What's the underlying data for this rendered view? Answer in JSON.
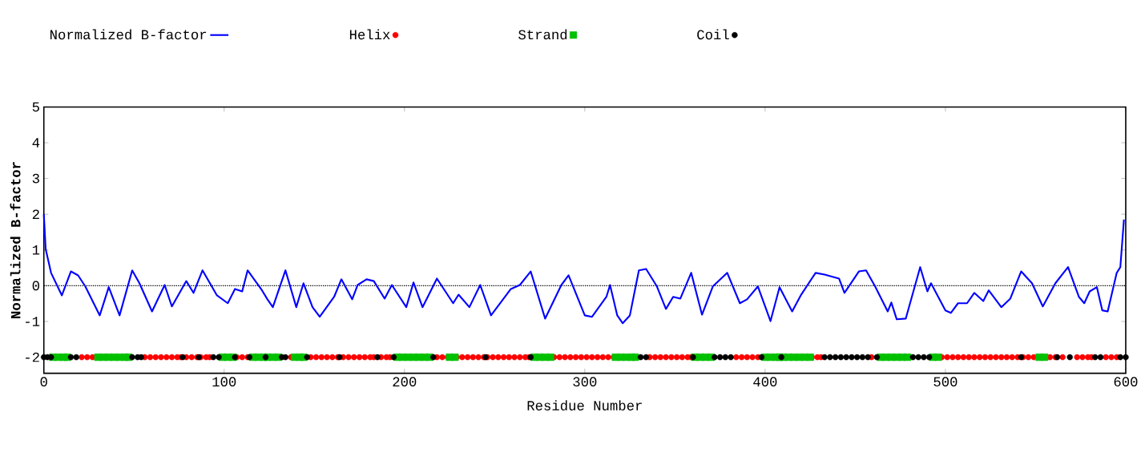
{
  "chart_data": {
    "type": "line",
    "xlabel": "Residue Number",
    "ylabel": "Normalized B-factor",
    "xlim": [
      0,
      600
    ],
    "ylim": [
      -2.45,
      5
    ],
    "xticks": [
      0,
      100,
      200,
      300,
      400,
      500,
      600
    ],
    "yticks": [
      -2,
      -1,
      0,
      1,
      2,
      3,
      4,
      5
    ],
    "legend": "top",
    "ref_lines": [
      {
        "axis": "y",
        "value": 0,
        "color": "#000000",
        "line_style": "dotted"
      }
    ],
    "series": [
      {
        "name": "Normalized B-factor",
        "color": "#0000ff",
        "marker": "none",
        "line_style": "solid",
        "x": [
          0,
          1,
          4,
          10,
          15,
          19,
          23,
          31,
          36,
          42,
          49,
          53,
          60,
          67,
          71,
          79,
          83,
          88,
          96,
          102,
          106,
          110,
          113,
          121,
          124,
          127,
          134,
          140,
          144,
          149,
          153,
          161,
          165,
          171,
          174,
          179,
          183,
          189,
          193,
          201,
          205,
          210,
          218,
          227,
          230,
          236,
          242,
          248,
          259,
          264,
          270,
          278,
          287,
          291,
          300,
          304,
          312,
          314,
          318,
          321,
          325,
          330,
          334,
          340,
          345,
          349,
          353,
          359,
          365,
          371,
          379,
          386,
          390,
          396,
          403,
          408,
          415,
          420,
          428,
          433,
          441,
          444,
          452,
          456,
          461,
          468,
          470,
          473,
          478,
          486,
          490,
          492,
          500,
          503,
          507,
          512,
          516,
          521,
          524,
          531,
          536,
          542,
          548,
          554,
          561,
          568,
          574,
          577,
          580,
          584,
          587,
          590,
          595,
          597,
          599
        ],
        "values": [
          2.0,
          1.03,
          0.36,
          -0.27,
          0.4,
          0.29,
          -0.02,
          -0.83,
          -0.04,
          -0.83,
          0.43,
          0.07,
          -0.72,
          0.02,
          -0.58,
          0.13,
          -0.2,
          0.43,
          -0.27,
          -0.49,
          -0.09,
          -0.16,
          0.43,
          -0.13,
          -0.38,
          -0.6,
          0.43,
          -0.6,
          0.07,
          -0.6,
          -0.87,
          -0.31,
          0.18,
          -0.38,
          0.02,
          0.18,
          0.13,
          -0.36,
          0.02,
          -0.6,
          0.09,
          -0.6,
          0.2,
          -0.49,
          -0.25,
          -0.6,
          0.02,
          -0.83,
          -0.09,
          0.02,
          0.4,
          -0.92,
          0.02,
          0.29,
          -0.83,
          -0.87,
          -0.31,
          0.02,
          -0.83,
          -1.05,
          -0.83,
          0.43,
          0.47,
          -0.02,
          -0.65,
          -0.31,
          -0.36,
          0.36,
          -0.81,
          -0.02,
          0.36,
          -0.49,
          -0.38,
          -0.02,
          -0.99,
          -0.04,
          -0.72,
          -0.25,
          0.36,
          0.31,
          0.2,
          -0.2,
          0.4,
          0.43,
          -0.02,
          -0.72,
          -0.47,
          -0.94,
          -0.92,
          0.52,
          -0.16,
          0.07,
          -0.69,
          -0.76,
          -0.49,
          -0.49,
          -0.2,
          -0.43,
          -0.13,
          -0.6,
          -0.36,
          0.4,
          0.07,
          -0.58,
          0.07,
          0.52,
          -0.31,
          -0.49,
          -0.16,
          -0.04,
          -0.69,
          -0.72,
          0.36,
          0.52,
          1.85
        ]
      },
      {
        "name": "Helix",
        "type": "scatter",
        "color": "#ff0000",
        "marker": "circle",
        "x": [
          21,
          24,
          27,
          29,
          56,
          59,
          62,
          65,
          68,
          71,
          74,
          76,
          79,
          82,
          85,
          87,
          90,
          92,
          107,
          110,
          113,
          137,
          148,
          151,
          154,
          157,
          160,
          163,
          166,
          169,
          172,
          175,
          178,
          181,
          183,
          187,
          190,
          192,
          218,
          221,
          224,
          229,
          232,
          235,
          238,
          241,
          244,
          246,
          249,
          252,
          255,
          258,
          261,
          264,
          267,
          269,
          283,
          286,
          289,
          292,
          295,
          298,
          301,
          304,
          307,
          310,
          313,
          316,
          336,
          339,
          342,
          345,
          348,
          351,
          354,
          357,
          359,
          384,
          387,
          390,
          393,
          396,
          426,
          429,
          431,
          459,
          498,
          501,
          504,
          507,
          510,
          513,
          516,
          519,
          522,
          525,
          528,
          531,
          534,
          537,
          540,
          543,
          546,
          549,
          558,
          561,
          565,
          573,
          576,
          579,
          581,
          589,
          592,
          595
        ],
        "values": [
          -2,
          -2,
          -2,
          -2,
          -2,
          -2,
          -2,
          -2,
          -2,
          -2,
          -2,
          -2,
          -2,
          -2,
          -2,
          -2,
          -2,
          -2,
          -2,
          -2,
          -2,
          -2,
          -2,
          -2,
          -2,
          -2,
          -2,
          -2,
          -2,
          -2,
          -2,
          -2,
          -2,
          -2,
          -2,
          -2,
          -2,
          -2,
          -2,
          -2,
          -2,
          -2,
          -2,
          -2,
          -2,
          -2,
          -2,
          -2,
          -2,
          -2,
          -2,
          -2,
          -2,
          -2,
          -2,
          -2,
          -2,
          -2,
          -2,
          -2,
          -2,
          -2,
          -2,
          -2,
          -2,
          -2,
          -2,
          -2,
          -2,
          -2,
          -2,
          -2,
          -2,
          -2,
          -2,
          -2,
          -2,
          -2,
          -2,
          -2,
          -2,
          -2,
          -2,
          -2,
          -2,
          -2,
          -2,
          -2,
          -2,
          -2,
          -2,
          -2,
          -2,
          -2,
          -2,
          -2,
          -2,
          -2,
          -2,
          -2,
          -2,
          -2,
          -2,
          -2,
          -2,
          -2,
          -2,
          -2,
          -2,
          -2,
          -2,
          -2,
          -2,
          -2
        ]
      },
      {
        "name": "Strand",
        "type": "scatter",
        "color": "#00c000",
        "marker": "square",
        "x": [
          5,
          8,
          11,
          13,
          30,
          33,
          36,
          39,
          42,
          45,
          47,
          99,
          102,
          105,
          116,
          119,
          122,
          124,
          127,
          130,
          139,
          142,
          144,
          196,
          199,
          202,
          205,
          208,
          211,
          214,
          225,
          228,
          272,
          275,
          278,
          281,
          317,
          320,
          323,
          326,
          328,
          361,
          364,
          367,
          370,
          400,
          403,
          406,
          408,
          410,
          413,
          416,
          419,
          422,
          425,
          464,
          467,
          470,
          473,
          476,
          479,
          493,
          496,
          552,
          555
        ],
        "values": [
          -2,
          -2,
          -2,
          -2,
          -2,
          -2,
          -2,
          -2,
          -2,
          -2,
          -2,
          -2,
          -2,
          -2,
          -2,
          -2,
          -2,
          -2,
          -2,
          -2,
          -2,
          -2,
          -2,
          -2,
          -2,
          -2,
          -2,
          -2,
          -2,
          -2,
          -2,
          -2,
          -2,
          -2,
          -2,
          -2,
          -2,
          -2,
          -2,
          -2,
          -2,
          -2,
          -2,
          -2,
          -2,
          -2,
          -2,
          -2,
          -2,
          -2,
          -2,
          -2,
          -2,
          -2,
          -2,
          -2,
          -2,
          -2,
          -2,
          -2,
          -2,
          -2,
          -2,
          -2,
          -2
        ]
      },
      {
        "name": "Coil",
        "type": "scatter",
        "color": "#000000",
        "marker": "circle",
        "x": [
          0,
          2,
          4,
          15,
          18,
          49,
          52,
          54,
          77,
          86,
          94,
          97,
          106,
          114,
          123,
          132,
          134,
          146,
          164,
          185,
          194,
          216,
          245,
          270,
          331,
          334,
          360,
          372,
          375,
          378,
          381,
          398,
          409,
          433,
          436,
          439,
          442,
          445,
          448,
          451,
          454,
          457,
          462,
          482,
          485,
          488,
          491,
          542,
          562,
          569,
          583,
          586,
          597,
          600
        ],
        "values": [
          -2,
          -2,
          -2,
          -2,
          -2,
          -2,
          -2,
          -2,
          -2,
          -2,
          -2,
          -2,
          -2,
          -2,
          -2,
          -2,
          -2,
          -2,
          -2,
          -2,
          -2,
          -2,
          -2,
          -2,
          -2,
          -2,
          -2,
          -2,
          -2,
          -2,
          -2,
          -2,
          -2,
          -2,
          -2,
          -2,
          -2,
          -2,
          -2,
          -2,
          -2,
          -2,
          -2,
          -2,
          -2,
          -2,
          -2,
          -2,
          -2,
          -2,
          -2,
          -2,
          -2,
          -2
        ]
      }
    ]
  }
}
